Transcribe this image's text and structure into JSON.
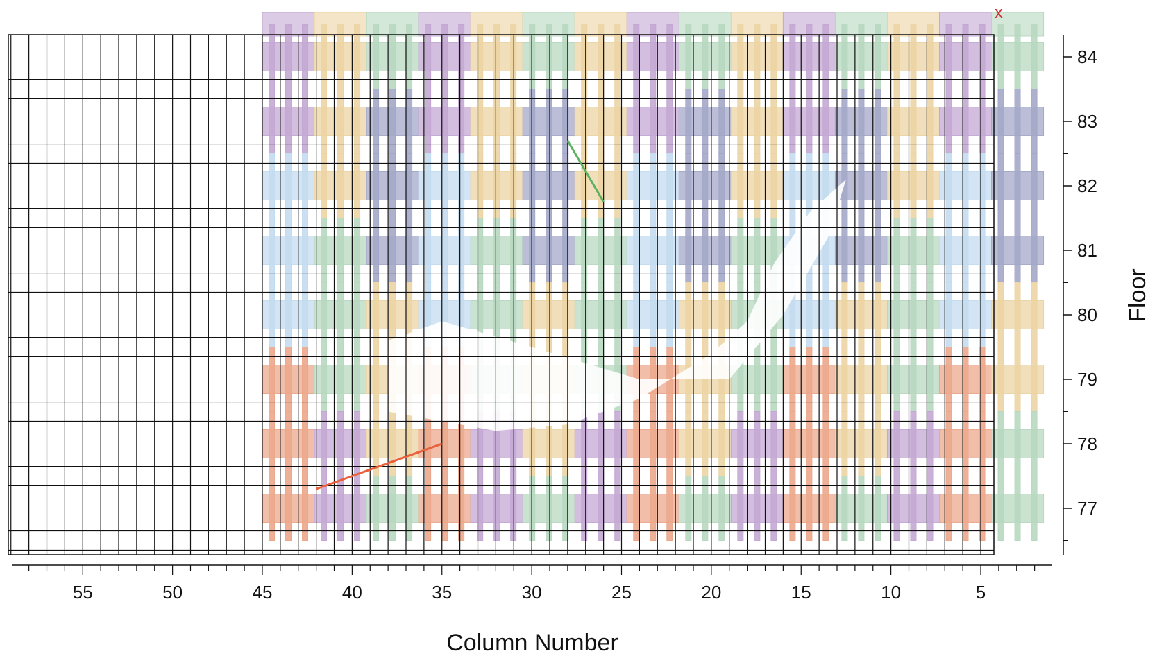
{
  "chart_data": {
    "type": "heatmap",
    "title": "",
    "xlabel": "Column Number",
    "ylabel": "Floor",
    "x_axis": {
      "reversed": true,
      "min": 1,
      "max": 59,
      "ticks": [
        55,
        50,
        45,
        40,
        35,
        30,
        25,
        20,
        15,
        10,
        5
      ]
    },
    "y_axis": {
      "position": "right",
      "min": 76.3,
      "max": 84.3,
      "ticks": [
        84,
        83,
        82,
        81,
        80,
        79,
        78,
        77
      ]
    },
    "grid": true,
    "floors": [
      77,
      78,
      79,
      80,
      81,
      82,
      83,
      84
    ],
    "columns": {
      "first": 2,
      "last": 59,
      "damaged_zone": {
        "from": 2,
        "to": 45
      }
    },
    "palette": {
      "purple": "#c4a8d4",
      "tan": "#ecd4a4",
      "green": "#b8d8c0",
      "slate": "#a4a8c8",
      "blue": "#c4dcf0",
      "salmon": "#eca88c"
    },
    "floor_bands": [
      {
        "floor": 84,
        "groups": [
          "purple",
          "tan",
          "green",
          "purple",
          "tan",
          "green",
          "tan",
          "purple",
          "green",
          "tan",
          "purple",
          "green",
          "tan",
          "purple",
          "green"
        ]
      },
      {
        "floor": 83,
        "groups": [
          "purple",
          "tan",
          "slate",
          "purple",
          "tan",
          "slate",
          "tan",
          "purple",
          "slate",
          "tan",
          "purple",
          "slate",
          "tan",
          "purple",
          "slate"
        ]
      },
      {
        "floor": 82,
        "groups": [
          "blue",
          "tan",
          "slate",
          "blue",
          "tan",
          "slate",
          "tan",
          "blue",
          "slate",
          "tan",
          "blue",
          "slate",
          "tan",
          "blue",
          "slate"
        ]
      },
      {
        "floor": 81,
        "groups": [
          "blue",
          "green",
          "slate",
          "blue",
          "green",
          "slate",
          "green",
          "blue",
          "slate",
          "green",
          "blue",
          "slate",
          "green",
          "blue",
          "slate"
        ]
      },
      {
        "floor": 80,
        "groups": [
          "blue",
          "green",
          "tan",
          "blue",
          "green",
          "tan",
          "green",
          "blue",
          "tan",
          "green",
          "blue",
          "tan",
          "green",
          "blue",
          "tan"
        ]
      },
      {
        "floor": 79,
        "groups": [
          "salmon",
          "green",
          "tan",
          "salmon",
          "green",
          "tan",
          "green",
          "salmon",
          "tan",
          "green",
          "salmon",
          "tan",
          "green",
          "salmon",
          "tan"
        ]
      },
      {
        "floor": 78,
        "groups": [
          "salmon",
          "purple",
          "tan",
          "salmon",
          "purple",
          "tan",
          "purple",
          "salmon",
          "tan",
          "purple",
          "salmon",
          "tan",
          "purple",
          "salmon",
          "green"
        ]
      },
      {
        "floor": 77,
        "groups": [
          "salmon",
          "purple",
          "green",
          "salmon",
          "purple",
          "green",
          "purple",
          "salmon",
          "green",
          "purple",
          "salmon",
          "green",
          "purple",
          "salmon",
          "green"
        ]
      }
    ],
    "annotations": [
      {
        "type": "line",
        "color": "#e8603c",
        "from": {
          "x": 42,
          "y": 77.3
        },
        "to": {
          "x": 35,
          "y": 78
        }
      },
      {
        "type": "line",
        "color": "#5cb060",
        "from": {
          "x": 28,
          "y": 82.7
        },
        "to": {
          "x": 26,
          "y": 81.75
        }
      },
      {
        "type": "marker",
        "symbol": "x",
        "color": "#d03030",
        "at": {
          "x": 4,
          "y": 84.6
        }
      }
    ]
  },
  "legend": {
    "shown": false
  }
}
